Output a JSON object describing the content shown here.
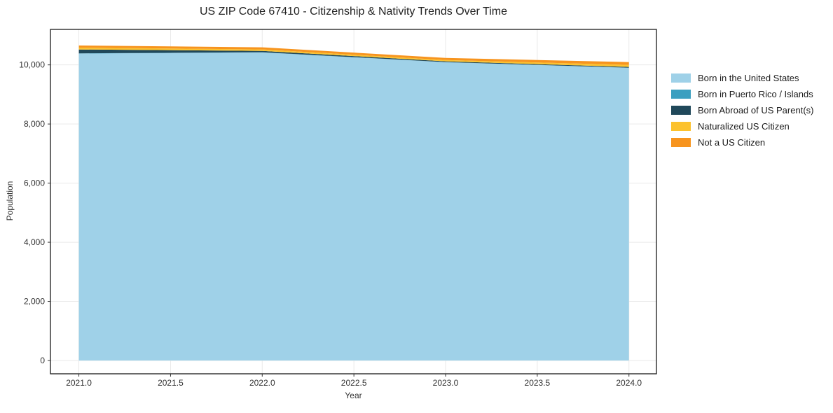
{
  "chart_data": {
    "type": "area",
    "stacked": true,
    "title": "US ZIP Code 67410 - Citizenship & Nativity Trends Over Time",
    "xlabel": "Year",
    "ylabel": "Population",
    "x": [
      2021,
      2022,
      2023,
      2024
    ],
    "series": [
      {
        "name": "Born in the United States",
        "color": "#9fd1e8",
        "values": [
          10380,
          10420,
          10090,
          9900
        ]
      },
      {
        "name": "Born in Puerto Rico / Islands",
        "color": "#3b9fc0",
        "values": [
          10,
          8,
          5,
          5
        ]
      },
      {
        "name": "Born Abroad of US Parent(s)",
        "color": "#20485a",
        "values": [
          130,
          45,
          25,
          25
        ]
      },
      {
        "name": "Naturalized US Citizen",
        "color": "#fcc22e",
        "values": [
          65,
          50,
          45,
          70
        ]
      },
      {
        "name": "Not a US Citizen",
        "color": "#f7941e",
        "values": [
          70,
          70,
          70,
          95
        ]
      }
    ],
    "xlim": [
      2020.845,
      2024.15
    ],
    "ylim": [
      -450,
      11200
    ],
    "x_ticks": [
      2021.0,
      2021.5,
      2022.0,
      2022.5,
      2023.0,
      2023.5,
      2024.0
    ],
    "x_tick_labels": [
      "2021.0",
      "2021.5",
      "2022.0",
      "2022.5",
      "2023.0",
      "2023.5",
      "2024.0"
    ],
    "y_ticks": [
      0,
      2000,
      4000,
      6000,
      8000,
      10000
    ],
    "y_tick_labels": [
      "0",
      "2,000",
      "4,000",
      "6,000",
      "8,000",
      "10,000"
    ],
    "grid": true,
    "legend_position": "right",
    "colors": {
      "grid": "#e9e9e9",
      "spine": "#1a1a1a",
      "tick": "#333333",
      "background": "#ffffff"
    }
  }
}
